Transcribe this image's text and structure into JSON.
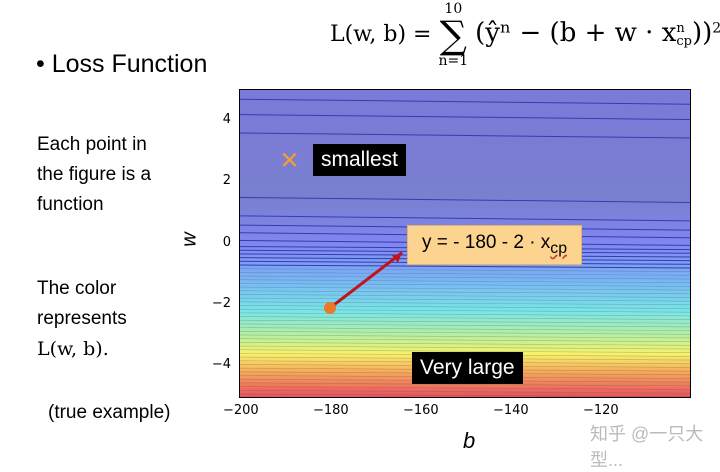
{
  "bullet": "Loss Function",
  "formula": {
    "lhs": "L(w, b) =",
    "sum_top": "10",
    "sum_bottom": "n=1",
    "body": "(ŷⁿ − (b + w · x",
    "sub": "cp",
    "sup": "n",
    "close": "))",
    "power": "2"
  },
  "description": [
    "Each point in",
    "the figure is a",
    "function"
  ],
  "color_text": [
    "The color",
    "represents",
    "L(w, b)."
  ],
  "note": "(true example)",
  "watermark": "知乎 @一只大型...",
  "chart_data": {
    "type": "heatmap",
    "xlabel": "b",
    "ylabel": "w",
    "xlim": [
      -200,
      -100
    ],
    "ylim": [
      -5,
      5
    ],
    "xticks": [
      "−200",
      "−180",
      "−160",
      "−140",
      "−120"
    ],
    "xtick_values": [
      -200,
      -180,
      -160,
      -140,
      -120
    ],
    "yticks": [
      "4",
      "2",
      "0",
      "−2",
      "−4"
    ],
    "ytick_values": [
      4,
      2,
      0,
      -2,
      -4
    ],
    "colormap": "jet (blue=small loss, red=large loss), contours nearly horizontal, loss increases as w decreases",
    "points": [
      {
        "name": "smallest",
        "b": -189,
        "w": 2.7,
        "marker": "x",
        "color": "#f0a030"
      },
      {
        "name": "start",
        "b": -180,
        "w": -2.1,
        "marker": "o",
        "color": "#e87a2a"
      }
    ],
    "arrow": {
      "from": [
        -180,
        -2.1
      ],
      "to": [
        -164,
        -0.3
      ],
      "color": "#c0141e"
    },
    "annotations": {
      "smallest": "smallest",
      "very_large": "Very large",
      "equation": "y = - 180 - 2 · x",
      "equation_sub": "cp"
    }
  }
}
